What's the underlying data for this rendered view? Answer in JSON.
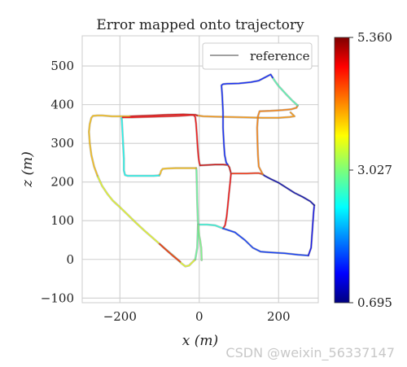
{
  "chart_data": {
    "type": "line",
    "title": "Error mapped onto trajectory",
    "xlabel": "x (m)",
    "ylabel": "z (m)",
    "xlim": [
      -295,
      300
    ],
    "ylim": [
      -112,
      578
    ],
    "xticks": [
      -200,
      0,
      200
    ],
    "yticks": [
      -100,
      0,
      100,
      200,
      300,
      400,
      500
    ],
    "xtick_labels": [
      "−200",
      "0",
      "200"
    ],
    "ytick_labels": [
      "−100",
      "0",
      "100",
      "200",
      "300",
      "400",
      "500"
    ],
    "grid": true,
    "legend": {
      "position": "top-right",
      "entries": [
        "reference"
      ]
    },
    "colorbar": {
      "colormap": "jet",
      "min": 0.695,
      "mid": 3.027,
      "max": 5.36,
      "tick_labels": [
        "5.360",
        "3.027",
        "0.695"
      ]
    },
    "series": [
      {
        "name": "reference",
        "color": "#808080",
        "segments": [
          {
            "err": 4.1,
            "points": [
              [
                230,
                380
              ],
              [
                238,
                372
              ],
              [
                240,
                370
              ],
              [
                228,
                368
              ],
              [
                200,
                366
              ],
              [
                180,
                366
              ],
              [
                160,
                366
              ],
              [
                120,
                367
              ],
              [
                80,
                368
              ],
              [
                40,
                369
              ],
              [
                10,
                370
              ],
              [
                -5,
                372
              ]
            ]
          },
          {
            "err": 4.9,
            "points": [
              [
                -5,
                372
              ],
              [
                -10,
                374
              ],
              [
                -40,
                375
              ],
              [
                -80,
                374
              ],
              [
                -120,
                372
              ],
              [
                -150,
                371
              ],
              [
                -175,
                370
              ]
            ]
          },
          {
            "err": 3.9,
            "points": [
              [
                -175,
                370
              ],
              [
                -220,
                370
              ],
              [
                -245,
                372
              ],
              [
                -257,
                372
              ],
              [
                -268,
                371
              ],
              [
                -272,
                366
              ],
              [
                -276,
                350
              ],
              [
                -278,
                330
              ],
              [
                -276,
                300
              ],
              [
                -272,
                270
              ],
              [
                -265,
                240
              ],
              [
                -256,
                215
              ]
            ]
          },
          {
            "err": 3.5,
            "points": [
              [
                -256,
                215
              ],
              [
                -245,
                190
              ],
              [
                -232,
                170
              ],
              [
                -218,
                152
              ],
              [
                -200,
                135
              ],
              [
                -180,
                115
              ],
              [
                -160,
                95
              ],
              [
                -140,
                76
              ],
              [
                -120,
                58
              ],
              [
                -100,
                40
              ],
              [
                -80,
                22
              ],
              [
                -60,
                5
              ],
              [
                -45,
                -10
              ],
              [
                -35,
                -18
              ],
              [
                -26,
                -16
              ],
              [
                -18,
                -8
              ],
              [
                -10,
                0
              ]
            ]
          },
          {
            "err": 4.6,
            "points": [
              [
                -100,
                40
              ],
              [
                -85,
                26
              ],
              [
                -65,
                8
              ],
              [
                -48,
                -6
              ]
            ]
          },
          {
            "err": 2.9,
            "points": [
              [
                -10,
                0
              ],
              [
                -5,
                30
              ],
              [
                -4,
                60
              ],
              [
                -3,
                90
              ],
              [
                -4,
                120
              ],
              [
                -5,
                150
              ],
              [
                -6,
                190
              ],
              [
                -7,
                230
              ],
              [
                -8,
                236
              ]
            ]
          },
          {
            "err": 3.9,
            "points": [
              [
                -8,
                236
              ],
              [
                -30,
                236
              ],
              [
                -60,
                236
              ],
              [
                -80,
                235
              ],
              [
                -92,
                234
              ],
              [
                -96,
                229
              ],
              [
                -98,
                222
              ],
              [
                -101,
                217
              ]
            ]
          },
          {
            "err": 2.5,
            "points": [
              [
                -101,
                217
              ],
              [
                -115,
                216
              ],
              [
                -140,
                216
              ],
              [
                -165,
                216
              ],
              [
                -180,
                216
              ],
              [
                -187,
                218
              ],
              [
                -190,
                230
              ],
              [
                -190,
                260
              ],
              [
                -192,
                300
              ],
              [
                -194,
                340
              ],
              [
                -195,
                360
              ],
              [
                -196,
                365
              ],
              [
                -193,
                367
              ]
            ]
          },
          {
            "err": 4.8,
            "points": [
              [
                -193,
                367
              ],
              [
                -170,
                367
              ],
              [
                -140,
                368
              ],
              [
                -110,
                369
              ],
              [
                -80,
                370
              ],
              [
                -50,
                371
              ],
              [
                -35,
                372
              ],
              [
                -22,
                373
              ],
              [
                -14,
                373
              ],
              [
                -10,
                368
              ],
              [
                -8,
                350
              ],
              [
                -6,
                320
              ],
              [
                -4,
                290
              ],
              [
                -2,
                265
              ],
              [
                0,
                250
              ],
              [
                2,
                243
              ]
            ]
          },
          {
            "err": 5.0,
            "points": [
              [
                2,
                243
              ],
              [
                20,
                244
              ],
              [
                40,
                245
              ],
              [
                60,
                245
              ],
              [
                72,
                244
              ],
              [
                76,
                238
              ],
              [
                78,
                230
              ],
              [
                80,
                222
              ]
            ]
          },
          {
            "err": 4.6,
            "points": [
              [
                80,
                222
              ],
              [
                100,
                222
              ],
              [
                120,
                222
              ],
              [
                140,
                223
              ],
              [
                150,
                223
              ],
              [
                160,
                220
              ]
            ]
          },
          {
            "err": 4.8,
            "points": [
              [
                80,
                222
              ],
              [
                78,
                200
              ],
              [
                75,
                170
              ],
              [
                72,
                140
              ],
              [
                69,
                110
              ],
              [
                65,
                88
              ],
              [
                60,
                80
              ]
            ]
          },
          {
            "err": 2.6,
            "points": [
              [
                60,
                80
              ],
              [
                40,
                88
              ],
              [
                20,
                90
              ],
              [
                5,
                90
              ],
              [
                -2,
                90
              ]
            ]
          },
          {
            "err": 3.0,
            "points": [
              [
                -2,
                90
              ],
              [
                -2,
                80
              ],
              [
                -1,
                70
              ],
              [
                0,
                60
              ],
              [
                2,
                50
              ],
              [
                4,
                36
              ],
              [
                5,
                30
              ],
              [
                6,
                -2
              ]
            ]
          },
          {
            "err": 1.5,
            "points": [
              [
                60,
                80
              ],
              [
                90,
                70
              ],
              [
                115,
                50
              ],
              [
                135,
                30
              ],
              [
                155,
                20
              ],
              [
                180,
                18
              ],
              [
                215,
                16
              ],
              [
                250,
                12
              ],
              [
                275,
                10
              ]
            ]
          },
          {
            "err": 1.2,
            "points": [
              [
                275,
                10
              ],
              [
                282,
                30
              ],
              [
                284,
                60
              ],
              [
                286,
                90
              ],
              [
                288,
                120
              ],
              [
                290,
                140
              ]
            ]
          },
          {
            "err": 0.9,
            "points": [
              [
                290,
                140
              ],
              [
                280,
                150
              ],
              [
                260,
                162
              ],
              [
                240,
                172
              ],
              [
                220,
                185
              ],
              [
                200,
                198
              ],
              [
                180,
                208
              ],
              [
                165,
                216
              ],
              [
                160,
                220
              ]
            ]
          },
          {
            "err": 4.2,
            "points": [
              [
                160,
                220
              ],
              [
                150,
                240
              ],
              [
                148,
                270
              ],
              [
                147,
                300
              ],
              [
                146,
                340
              ],
              [
                148,
                370
              ],
              [
                152,
                383
              ],
              [
                180,
                384
              ],
              [
                210,
                386
              ],
              [
                232,
                388
              ],
              [
                245,
                392
              ],
              [
                248,
                398
              ]
            ]
          },
          {
            "err": 2.8,
            "points": [
              [
                248,
                398
              ],
              [
                235,
                410
              ],
              [
                218,
                428
              ],
              [
                200,
                448
              ],
              [
                190,
                462
              ],
              [
                185,
                470
              ]
            ]
          },
          {
            "err": 1.4,
            "points": [
              [
                185,
                470
              ],
              [
                180,
                478
              ],
              [
                165,
                470
              ],
              [
                150,
                462
              ],
              [
                130,
                458
              ],
              [
                100,
                455
              ],
              [
                70,
                454
              ],
              [
                60,
                453
              ],
              [
                56,
                450
              ],
              [
                58,
                420
              ],
              [
                60,
                380
              ],
              [
                60,
                340
              ],
              [
                62,
                300
              ],
              [
                64,
                270
              ],
              [
                68,
                250
              ],
              [
                72,
                245
              ]
            ]
          }
        ]
      }
    ]
  },
  "watermark": "CSDN @weixin_56337147"
}
